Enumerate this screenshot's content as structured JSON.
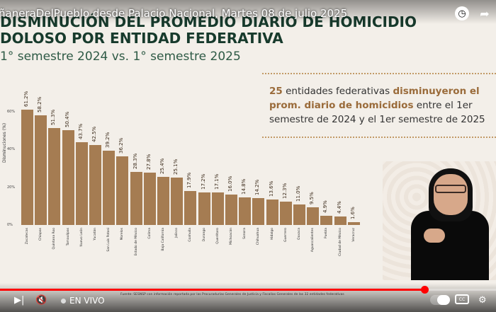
{
  "video": {
    "title": "ñaneraDelPueblo desde Palacio Nacional, Martes 08 de julio 2025",
    "live_label": "EN VIVO",
    "progress_percent": 85.7
  },
  "slide": {
    "title_line1": "DISMINUCIÓN DEL PROMEDIO DIARIO DE HOMICIDIO",
    "title_line2": "DOLOSO POR ENTIDAD FEDERATIVA",
    "subtitle": "1° semestre 2024 vs. 1° semestre 2025",
    "info_prefix": "25",
    "info_mid1": " entidades federativas ",
    "info_bold": "disminuyeron el prom. diario de homicidios",
    "info_rest": " entre el 1er semestre de 2024 y el 1er semestre de 2025",
    "source": "Fuente: SESNSP con información reportada por las Procuradurías Generales de Justicia y Fiscalías Generales de las 32 entidades federativas"
  },
  "chart_data": {
    "type": "bar",
    "ylabel": "Disminuciones (%)",
    "ylim": [
      0,
      60
    ],
    "yticks": [
      "0%",
      "20%",
      "40%",
      "60%"
    ],
    "categories": [
      "Zacatecas",
      "Chiapas",
      "Quintana Roo",
      "Tamaulipas",
      "Nuevo León",
      "Yucatán",
      "San Luis Potosí",
      "Morelos",
      "Estado de México",
      "Colima",
      "Baja California",
      "Jalisco",
      "Coahuila",
      "Durango",
      "Querétaro",
      "Michoacán",
      "Sonora",
      "Chihuahua",
      "Hidalgo",
      "Guerrero",
      "Oaxaca",
      "Aguascalientes",
      "Puebla",
      "Ciudad de México",
      "Veracruz"
    ],
    "values": [
      61.2,
      58.2,
      51.3,
      50.4,
      43.7,
      42.5,
      39.2,
      36.2,
      28.3,
      27.8,
      25.4,
      25.1,
      17.9,
      17.2,
      17.1,
      16.0,
      14.8,
      14.2,
      13.6,
      12.3,
      11.0,
      9.5,
      4.9,
      4.4,
      1.6
    ],
    "labels": [
      "61.2%",
      "58.2%",
      "51.3%",
      "50.4%",
      "43.7%",
      "42.5%",
      "39.2%",
      "36.2%",
      "28.3%",
      "27.8%",
      "25.4%",
      "25.1%",
      "17.9%",
      "17.2%",
      "17.1%",
      "16.0%",
      "14.8%",
      "14.2%",
      "13.6%",
      "12.3%",
      "11.0%",
      "9.5%",
      "4.9%",
      "4.4%",
      "1.6%"
    ],
    "bar_color": "#a57c52"
  },
  "icons": {
    "play": "play-icon",
    "skip": "skip-icon",
    "mute": "mute-icon",
    "clock": "clock-icon",
    "share": "share-icon",
    "settings": "settings-icon",
    "cc": "cc-icon"
  }
}
